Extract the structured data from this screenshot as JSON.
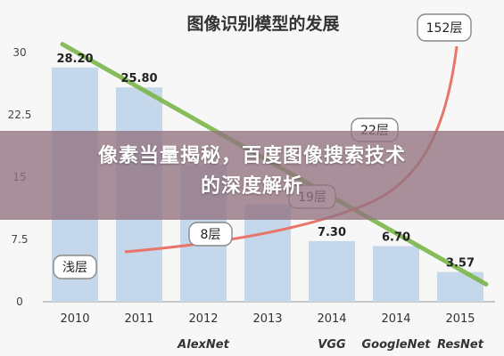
{
  "overlay": {
    "line1": "像素当量揭秘，百度图像搜索技术",
    "line2": "的深度解析",
    "band_color": "#927280"
  },
  "chart_data": {
    "type": "bar",
    "title": "图像识别模型的发展",
    "categories": [
      "2010",
      "2011",
      "2012",
      "2013",
      "2014",
      "2014",
      "2015"
    ],
    "values": [
      28.2,
      25.8,
      16.4,
      11.7,
      7.3,
      6.7,
      3.57
    ],
    "value_labels": [
      "28.20",
      "25.80",
      "",
      "",
      "7.30",
      "6.70",
      "3.57"
    ],
    "ylim": [
      0,
      30
    ],
    "yticks": [
      "0",
      "7.5",
      "15",
      "22.5",
      "30"
    ],
    "ytick_values": [
      0,
      7.5,
      15,
      22.5,
      30
    ],
    "model_labels": [
      "",
      "",
      "AlexNet",
      "",
      "VGG",
      "GoogleNet",
      "ResNet"
    ],
    "bar_color": "#c5d7ea",
    "trend_line": {
      "color": "#7ab648",
      "from": 31,
      "to": 2.1
    },
    "depth_curve": {
      "color": "#e8756a",
      "callouts": [
        "浅层",
        "8层",
        "19层",
        "22层",
        "152层"
      ]
    },
    "grid": false
  }
}
